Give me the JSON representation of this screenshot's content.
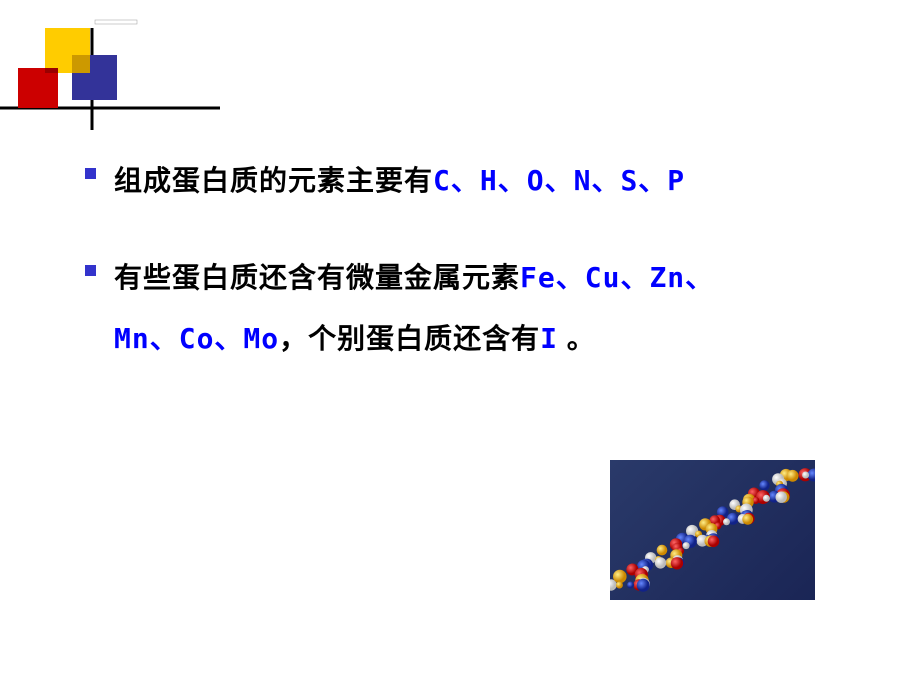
{
  "decoration": {
    "colors": {
      "yellow": "#ffcc00",
      "red": "#cc0000",
      "blue": "#333399",
      "darkred": "#990000",
      "darkyellow": "#cc9900"
    }
  },
  "bullets": [
    {
      "prefix": "组成蛋白质的元素主要有",
      "highlight": "C、H、O、N、S、P",
      "suffix": ""
    },
    {
      "prefix": "有些蛋白质还含有微量金属元素",
      "highlight": "Fe、Cu、Zn、",
      "line2_highlight": "Mn、Co、Mo",
      "line2_mid": "，个别蛋白质还含有",
      "line2_highlight2": "I",
      "line2_suffix": " 。"
    }
  ],
  "molecule": {
    "background_start": "#2a3a6a",
    "background_end": "#1a2555",
    "atom_colors": [
      "#dd2222",
      "#2244cc",
      "#ffffff",
      "#ffcc33"
    ]
  }
}
